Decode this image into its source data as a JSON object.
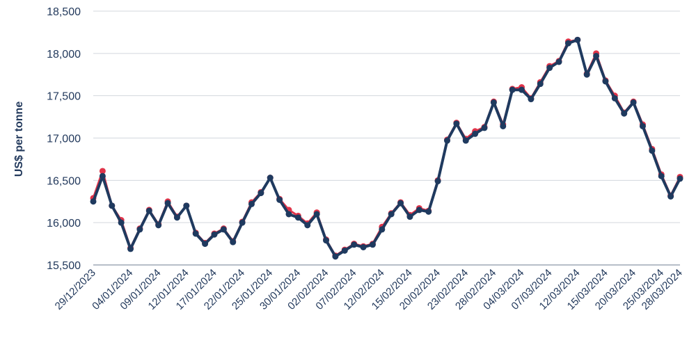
{
  "chart_data": {
    "type": "line",
    "title": "",
    "xlabel": "",
    "ylabel": "US$ per tonne",
    "ylim": [
      15500,
      18500
    ],
    "yticks": [
      "15,500",
      "16,000",
      "16,500",
      "17,000",
      "17,500",
      "18,000",
      "18,500"
    ],
    "ytick_values": [
      15500,
      16000,
      16500,
      17000,
      17500,
      18000,
      18500
    ],
    "grid": "horizontal",
    "legend": "none",
    "xtick_labels": [
      "29/12/2023",
      "04/01/2024",
      "09/01/2024",
      "12/01/2024",
      "17/01/2024",
      "22/01/2024",
      "25/01/2024",
      "30/01/2024",
      "02/02/2024",
      "07/02/2024",
      "12/02/2024",
      "15/02/2024",
      "20/02/2024",
      "23/02/2024",
      "28/02/2024",
      "04/03/2024",
      "07/03/2024",
      "12/03/2024",
      "15/03/2024",
      "20/03/2024",
      "25/03/2024",
      "28/03/2024"
    ],
    "xtick_positions": [
      0,
      4,
      7,
      10,
      13,
      16,
      19,
      22,
      25,
      28,
      31,
      34,
      37,
      40,
      43,
      46,
      49,
      52,
      55,
      58,
      61,
      63
    ],
    "colors": {
      "series_a": "#e0344a",
      "series_b": "#1f3a5f",
      "grid": "#d3d7dd",
      "axis": "#22395c"
    },
    "series": [
      {
        "values": [
          16290,
          16610,
          16200,
          16030,
          15700,
          15930,
          16150,
          15980,
          16250,
          16070,
          16200,
          15880,
          15760,
          15870,
          15930,
          15780,
          16010,
          16240,
          16360,
          16530,
          16280,
          16150,
          16080,
          15990,
          16120,
          15800,
          15610,
          15680,
          15750,
          15720,
          15750,
          15950,
          16110,
          16240,
          16090,
          16170,
          16140,
          16500,
          16980,
          17180,
          16990,
          17080,
          17130,
          17430,
          17160,
          17580,
          17600,
          17470,
          17660,
          17850,
          17910,
          18140,
          18160,
          17760,
          18000,
          17680,
          17500,
          17300,
          17430,
          17160,
          16870,
          16570,
          16320,
          16540
        ]
      },
      {
        "values": [
          16250,
          16550,
          16200,
          16000,
          15690,
          15920,
          16140,
          15970,
          16230,
          16060,
          16200,
          15870,
          15750,
          15860,
          15920,
          15770,
          16000,
          16220,
          16350,
          16530,
          16270,
          16100,
          16060,
          15970,
          16100,
          15790,
          15600,
          15670,
          15740,
          15710,
          15740,
          15920,
          16100,
          16230,
          16070,
          16150,
          16130,
          16490,
          16970,
          17170,
          16970,
          17050,
          17120,
          17420,
          17140,
          17570,
          17570,
          17460,
          17640,
          17830,
          17900,
          18120,
          18160,
          17750,
          17970,
          17670,
          17470,
          17290,
          17420,
          17140,
          16850,
          16550,
          16310,
          16520
        ]
      }
    ]
  }
}
